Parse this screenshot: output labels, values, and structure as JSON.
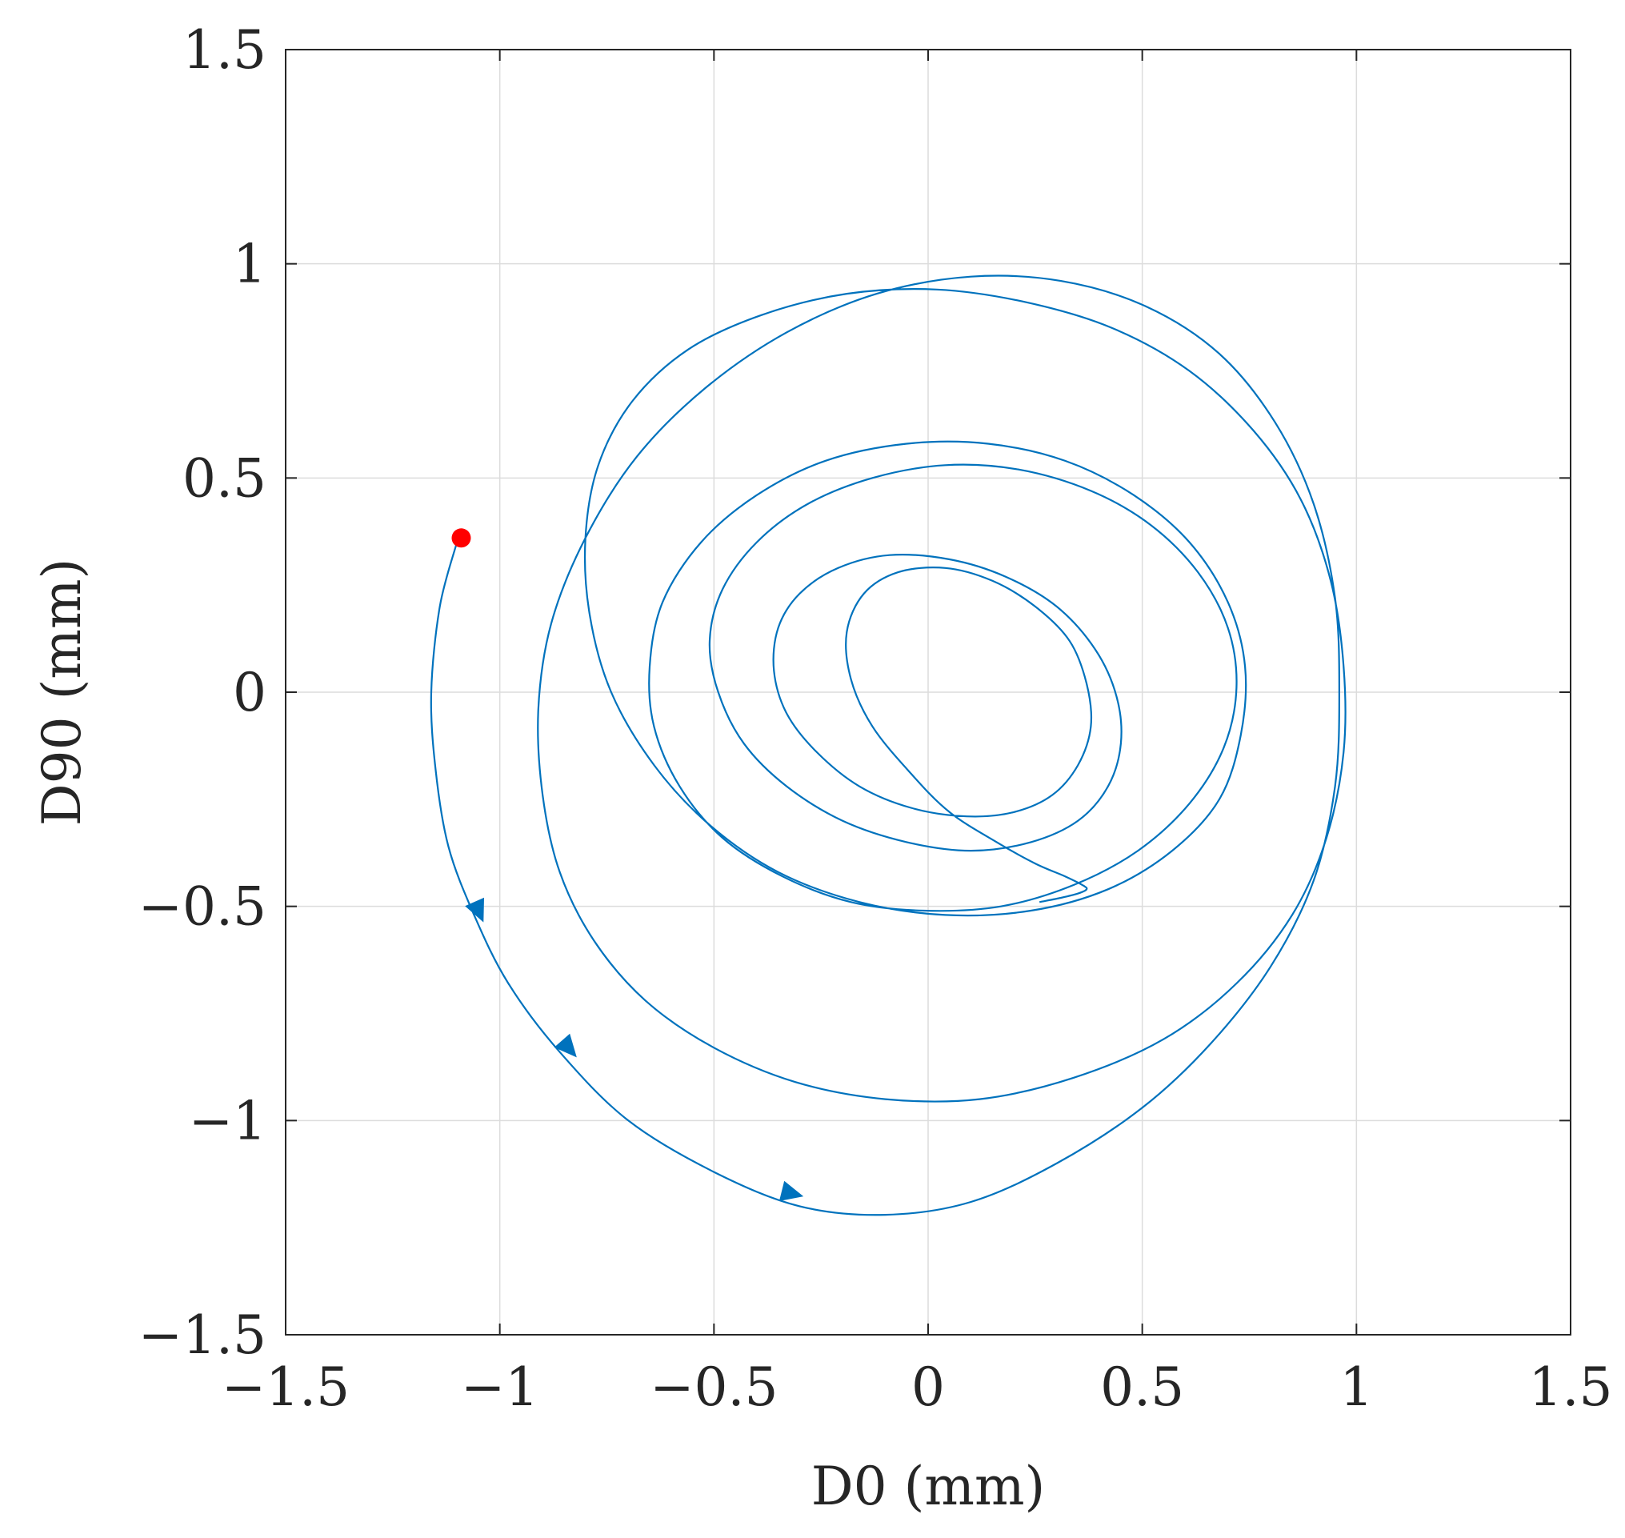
{
  "chart_data": {
    "type": "line",
    "title": "",
    "xlabel": "D0 (mm)",
    "ylabel": "D90 (mm)",
    "xlim": [
      -1.5,
      1.5
    ],
    "ylim": [
      -1.5,
      1.5
    ],
    "xticks": [
      -1.5,
      -1,
      -0.5,
      0,
      0.5,
      1,
      1.5
    ],
    "yticks": [
      -1.5,
      -1,
      -0.5,
      0,
      0.5,
      1,
      1.5
    ],
    "xtick_labels": [
      "−1.5",
      "−1",
      "−0.5",
      "0",
      "0.5",
      "1",
      "1.5"
    ],
    "ytick_labels": [
      "−1.5",
      "−1",
      "−0.5",
      "0",
      "0.5",
      "1",
      "1.5"
    ],
    "grid": true,
    "colors": {
      "trajectory": "#0072bd",
      "start_marker": "#ff0000"
    },
    "series": [
      {
        "type": "line",
        "x": [
          -1.1,
          -1.14,
          -1.16,
          -1.15,
          -1.12,
          -1.06,
          -0.98,
          -0.86,
          -0.7,
          -0.5,
          -0.3,
          -0.1,
          0.1,
          0.3,
          0.5,
          0.66,
          0.8,
          0.9,
          0.95,
          0.96,
          0.95,
          0.9,
          0.81,
          0.68,
          0.51,
          0.31,
          0.1,
          -0.12,
          -0.33,
          -0.52,
          -0.68,
          -0.8,
          -0.88,
          -0.91,
          -0.9,
          -0.86,
          -0.78,
          -0.66,
          -0.5,
          -0.31,
          -0.1,
          0.12,
          0.34,
          0.55,
          0.72,
          0.85,
          0.93,
          0.97,
          0.97,
          0.94,
          0.87,
          0.76,
          0.61,
          0.43,
          0.23,
          0.02,
          -0.19,
          -0.39,
          -0.56,
          -0.69,
          -0.77,
          -0.8,
          -0.79,
          -0.74,
          -0.64,
          -0.51,
          -0.35,
          -0.16,
          0.04,
          0.24,
          0.42,
          0.57,
          0.68,
          0.73,
          0.74,
          0.7,
          0.61,
          0.48,
          0.32,
          0.14,
          -0.05,
          -0.24,
          -0.4,
          -0.53,
          -0.62,
          -0.65,
          -0.64,
          -0.58,
          -0.48,
          -0.34,
          -0.18,
          -0.01,
          0.17,
          0.34,
          0.49,
          0.61,
          0.69,
          0.72,
          0.7,
          0.63,
          0.52,
          0.38,
          0.21,
          0.04,
          -0.13,
          -0.28,
          -0.4,
          -0.48,
          -0.51,
          -0.49,
          -0.43,
          -0.33,
          -0.2,
          -0.05,
          0.1,
          0.24,
          0.35,
          0.42,
          0.45,
          0.44,
          0.39,
          0.3,
          0.18,
          0.05,
          -0.09,
          -0.21,
          -0.3,
          -0.35,
          -0.36,
          -0.33,
          -0.26,
          -0.16,
          -0.04,
          0.09,
          0.2,
          0.29,
          0.35,
          0.38,
          0.37,
          0.33,
          0.25,
          0.15,
          0.04,
          -0.07,
          -0.15,
          -0.19,
          -0.18,
          -0.13,
          -0.04,
          0.05,
          0.16,
          0.25,
          0.32,
          0.36,
          0.37,
          0.35,
          0.31,
          0.26
        ],
        "y": [
          0.35,
          0.2,
          0.0,
          -0.18,
          -0.36,
          -0.52,
          -0.68,
          -0.84,
          -1.0,
          -1.12,
          -1.2,
          -1.22,
          -1.19,
          -1.1,
          -0.97,
          -0.82,
          -0.64,
          -0.44,
          -0.22,
          0.0,
          0.22,
          0.44,
          0.63,
          0.79,
          0.9,
          0.96,
          0.97,
          0.93,
          0.84,
          0.71,
          0.55,
          0.36,
          0.16,
          -0.04,
          -0.24,
          -0.42,
          -0.58,
          -0.72,
          -0.83,
          -0.91,
          -0.95,
          -0.95,
          -0.9,
          -0.81,
          -0.68,
          -0.52,
          -0.34,
          -0.14,
          0.06,
          0.26,
          0.45,
          0.61,
          0.75,
          0.85,
          0.91,
          0.94,
          0.93,
          0.88,
          0.8,
          0.68,
          0.53,
          0.36,
          0.18,
          0.0,
          -0.17,
          -0.31,
          -0.42,
          -0.49,
          -0.52,
          -0.51,
          -0.46,
          -0.37,
          -0.25,
          -0.1,
          0.06,
          0.21,
          0.35,
          0.46,
          0.54,
          0.58,
          0.58,
          0.54,
          0.46,
          0.35,
          0.21,
          0.06,
          -0.08,
          -0.22,
          -0.34,
          -0.43,
          -0.49,
          -0.51,
          -0.5,
          -0.45,
          -0.37,
          -0.26,
          -0.13,
          0.01,
          0.15,
          0.28,
          0.39,
          0.47,
          0.52,
          0.53,
          0.5,
          0.44,
          0.35,
          0.24,
          0.12,
          0.0,
          -0.12,
          -0.22,
          -0.3,
          -0.35,
          -0.37,
          -0.35,
          -0.3,
          -0.22,
          -0.12,
          -0.01,
          0.1,
          0.2,
          0.27,
          0.31,
          0.32,
          0.29,
          0.23,
          0.15,
          0.05,
          -0.05,
          -0.14,
          -0.22,
          -0.27,
          -0.29,
          -0.28,
          -0.24,
          -0.17,
          -0.08,
          0.02,
          0.12,
          0.2,
          0.26,
          0.29,
          0.28,
          0.23,
          0.14,
          0.03,
          -0.08,
          -0.19,
          -0.28,
          -0.35,
          -0.4,
          -0.43,
          -0.45,
          -0.46,
          -0.47,
          -0.48,
          -0.49
        ]
      },
      {
        "type": "direction_markers",
        "x": [
          -1.05,
          -0.84,
          -0.32
        ],
        "y": [
          -0.51,
          -0.83,
          -1.17
        ]
      },
      {
        "type": "start_marker",
        "x": [
          -1.09
        ],
        "y": [
          0.36
        ]
      }
    ]
  }
}
